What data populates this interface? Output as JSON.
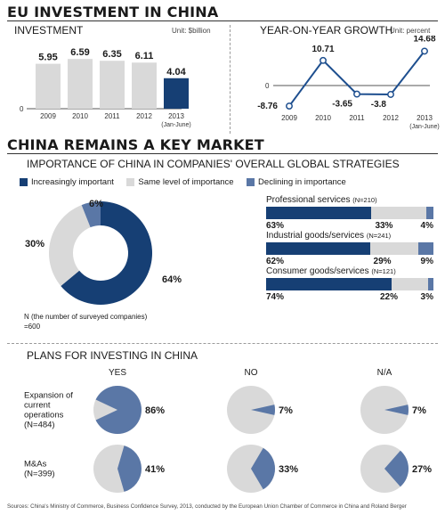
{
  "title": "EU INVESTMENT IN CHINA",
  "chart_data": [
    {
      "type": "bar",
      "title": "INVESTMENT",
      "unit": "Unit: $billion",
      "categories": [
        "2009",
        "2010",
        "2011",
        "2012",
        "2013"
      ],
      "category_notes": [
        "",
        "",
        "",
        "",
        "(Jan-June)"
      ],
      "values": [
        5.95,
        6.59,
        6.35,
        6.11,
        4.04
      ],
      "value_labels": [
        "5.95",
        "6.59",
        "6.35",
        "6.11",
        "4.04"
      ],
      "zero_label": "0",
      "ylim": [
        0,
        8.5
      ],
      "colors": [
        "#d9d9d9",
        "#d9d9d9",
        "#d9d9d9",
        "#d9d9d9",
        "#163f74"
      ]
    },
    {
      "type": "line",
      "title": "YEAR-ON-YEAR GROWTH",
      "unit": "Unit: percent",
      "categories": [
        "2009",
        "2010",
        "2011",
        "2012",
        "2013"
      ],
      "category_notes": [
        "",
        "",
        "",
        "",
        "(Jan-June)"
      ],
      "values": [
        -8.76,
        10.71,
        -3.65,
        -3.8,
        14.68
      ],
      "value_labels": [
        "-8.76",
        "10.71",
        "-3.65",
        "-3.8",
        "14.68"
      ],
      "zero_label": "0",
      "ylim": [
        -11,
        16.5
      ],
      "color": "#1e4f8f"
    },
    {
      "type": "pie",
      "title": "IMPORTANCE OF CHINA IN COMPANIES' OVERALL GLOBAL STRATEGIES",
      "series": [
        {
          "name": "Increasingly important",
          "value": 64,
          "label": "64%",
          "color": "#163f74"
        },
        {
          "name": "Same level of importance",
          "value": 30,
          "label": "30%",
          "color": "#d9d9d9"
        },
        {
          "name": "Declining in importance",
          "value": 6,
          "label": "6%",
          "color": "#5a77a6"
        }
      ],
      "note_line1": "N (the number of surveyed companies)",
      "note_line2": "=600"
    },
    {
      "type": "bar",
      "stacked": true,
      "rows": [
        {
          "name": "Professional services",
          "n": "(N=210)",
          "values": [
            63,
            33,
            4
          ],
          "labels": [
            "63%",
            "33%",
            "4%"
          ]
        },
        {
          "name": "Industrial goods/services",
          "n": "(N=241)",
          "values": [
            62,
            29,
            9
          ],
          "labels": [
            "62%",
            "29%",
            "9%"
          ]
        },
        {
          "name": "Consumer goods/services",
          "n": "(N=121)",
          "values": [
            74,
            22,
            3
          ],
          "labels": [
            "74%",
            "22%",
            "3%"
          ]
        }
      ],
      "colors": [
        "#163f74",
        "#d9d9d9",
        "#5a77a6"
      ]
    },
    {
      "type": "pie",
      "title": "PLANS FOR INVESTING IN CHINA",
      "columns": [
        "YES",
        "NO",
        "N/A"
      ],
      "rows": [
        {
          "label_lines": [
            "Expansion of",
            "current",
            "operations",
            "(N=484)"
          ],
          "values": [
            86,
            7,
            7
          ],
          "labels": [
            "86%",
            "7%",
            "7%"
          ]
        },
        {
          "label_lines": [
            "M&As",
            "(N=399)"
          ],
          "values": [
            41,
            33,
            27
          ],
          "labels": [
            "41%",
            "33%",
            "27%"
          ]
        }
      ],
      "colors": [
        "#5a77a6",
        "#d9d9d9"
      ]
    }
  ],
  "section2_title": "CHINA REMAINS A KEY MARKET",
  "sources": "Sources: China's Ministry of Commerce, Business Confidence Survey, 2013, conducted by the European Union Chamber of Commerce in China and Roland Berger"
}
